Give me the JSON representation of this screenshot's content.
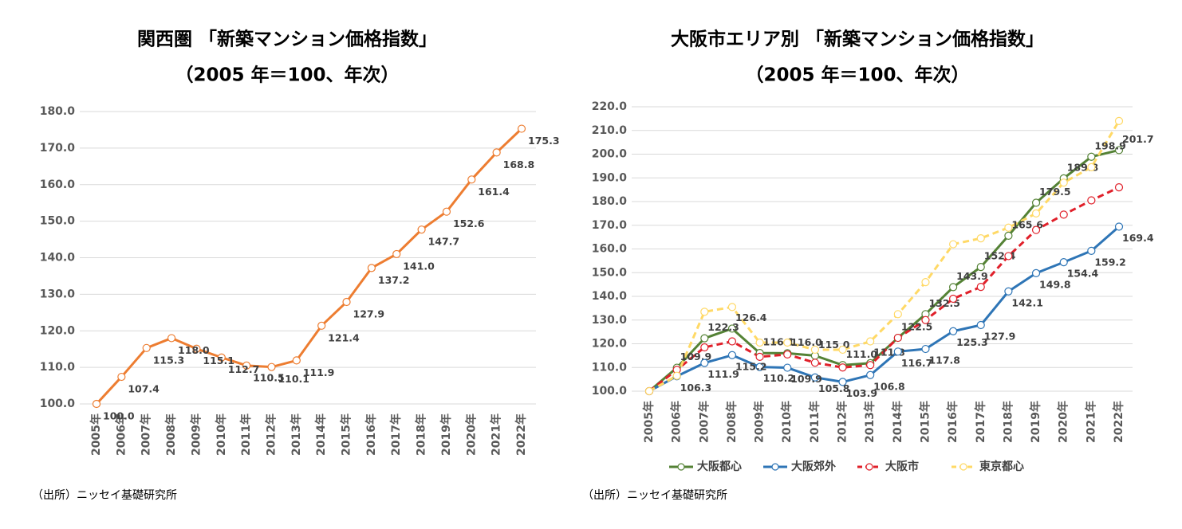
{
  "chart_data": [
    {
      "type": "line",
      "title": "関西圏 「新築マンション価格指数」",
      "subtitle": "（2005 年＝100、年次）",
      "source": "（出所）ニッセイ基礎研究所",
      "categories": [
        "2005年",
        "2006年",
        "2007年",
        "2008年",
        "2009年",
        "2010年",
        "2011年",
        "2012年",
        "2013年",
        "2014年",
        "2015年",
        "2016年",
        "2017年",
        "2018年",
        "2019年",
        "2020年",
        "2021年",
        "2022年"
      ],
      "values": [
        100.0,
        107.4,
        115.3,
        118.0,
        115.1,
        112.7,
        110.5,
        110.1,
        111.9,
        121.4,
        127.9,
        137.2,
        141.0,
        147.7,
        152.6,
        161.4,
        168.8,
        175.3
      ],
      "value_labels": [
        "100.0",
        "107.4",
        "115.3",
        "118.0",
        "115.1",
        "112.7",
        "110.5",
        "110.1",
        "111.9",
        "121.4",
        "127.9",
        "137.2",
        "141.0",
        "147.7",
        "152.6",
        "161.4",
        "168.8",
        "175.3"
      ],
      "color": "#ed7d31",
      "ylim": [
        100,
        180
      ],
      "yticks": [
        {
          "value": 100,
          "label": "100.0"
        },
        {
          "value": 110,
          "label": "110.0"
        },
        {
          "value": 120,
          "label": "120.0"
        },
        {
          "value": 130,
          "label": "130.0"
        },
        {
          "value": 140,
          "label": "140.0"
        },
        {
          "value": 150,
          "label": "150.0"
        },
        {
          "value": 160,
          "label": "160.0"
        },
        {
          "value": 170,
          "label": "170.0"
        },
        {
          "value": 180,
          "label": "180.0"
        }
      ],
      "grid": true
    },
    {
      "type": "line",
      "title": "大阪市エリア別 「新築マンション価格指数」",
      "subtitle": "（2005 年＝100、年次）",
      "source": "（出所）ニッセイ基礎研究所",
      "categories": [
        "2005年",
        "2006年",
        "2007年",
        "2008年",
        "2009年",
        "2010年",
        "2011年",
        "2012年",
        "2013年",
        "2014年",
        "2015年",
        "2016年",
        "2017年",
        "2018年",
        "2019年",
        "2020年",
        "2021年",
        "2022年"
      ],
      "series": [
        {
          "name": "大阪都心",
          "color": "#548235",
          "line_style": "solid",
          "values": [
            100.0,
            109.9,
            122.3,
            126.4,
            116.1,
            116.0,
            115.0,
            111.0,
            111.8,
            122.5,
            132.5,
            143.9,
            152.4,
            165.6,
            179.5,
            189.8,
            198.9,
            201.7
          ],
          "value_labels": [
            null,
            "109.9",
            "122.3",
            "126.4",
            "116.1",
            "116.0",
            "115.0",
            "111.0",
            "111.8",
            "122.5",
            "132.5",
            "143.9",
            "152.4",
            "165.6",
            "179.5",
            "189.8",
            "198.9",
            "201.7"
          ]
        },
        {
          "name": "大阪郊外",
          "color": "#2e75b6",
          "line_style": "solid",
          "values": [
            100.0,
            106.3,
            111.9,
            115.2,
            110.2,
            109.9,
            105.8,
            103.9,
            106.8,
            116.7,
            117.8,
            125.3,
            127.9,
            142.1,
            149.8,
            154.4,
            159.2,
            169.4
          ],
          "value_labels": [
            null,
            "106.3",
            "111.9",
            "115.2",
            "110.2",
            "109.9",
            "105.8",
            "103.9",
            "106.8",
            "116.7",
            "117.8",
            "125.3",
            "127.9",
            "142.1",
            "149.8",
            "154.4",
            "159.2",
            "169.4"
          ]
        },
        {
          "name": "大阪市",
          "color": "#e0202a",
          "line_style": "dashed",
          "values": [
            100.0,
            109,
            118.5,
            121,
            114.5,
            115.5,
            112,
            110,
            111,
            122.5,
            130,
            139,
            144,
            157,
            168,
            174.5,
            180.5,
            186
          ]
        },
        {
          "name": "東京都心",
          "color": "#ffd966",
          "line_style": "dashed",
          "values": [
            100.0,
            106.5,
            133.5,
            135.5,
            120.5,
            120.5,
            117.5,
            117.5,
            121,
            132.5,
            146,
            162,
            164.5,
            169,
            175,
            188,
            194.5,
            214
          ]
        }
      ],
      "ylim": [
        100,
        220
      ],
      "yticks": [
        {
          "value": 100,
          "label": "100.0"
        },
        {
          "value": 110,
          "label": "110.0"
        },
        {
          "value": 120,
          "label": "120.0"
        },
        {
          "value": 130,
          "label": "130.0"
        },
        {
          "value": 140,
          "label": "140.0"
        },
        {
          "value": 150,
          "label": "150.0"
        },
        {
          "value": 160,
          "label": "160.0"
        },
        {
          "value": 170,
          "label": "170.0"
        },
        {
          "value": 180,
          "label": "180.0"
        },
        {
          "value": 190,
          "label": "190.0"
        },
        {
          "value": 200,
          "label": "200.0"
        },
        {
          "value": 210,
          "label": "210.0"
        },
        {
          "value": 220,
          "label": "220.0"
        }
      ],
      "grid": true,
      "legend": "bottom"
    }
  ]
}
